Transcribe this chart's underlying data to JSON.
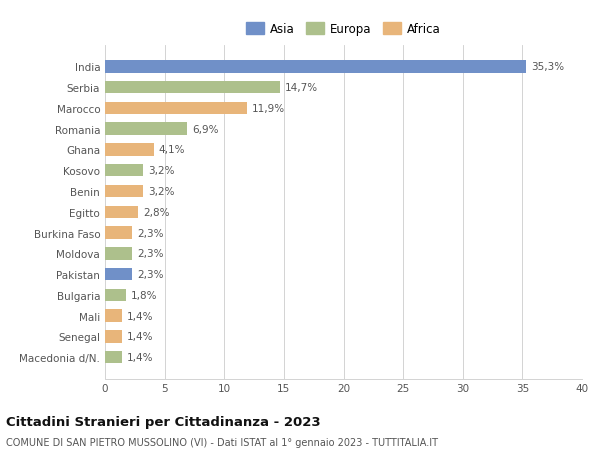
{
  "title": "Cittadini Stranieri per Cittadinanza - 2023",
  "subtitle": "COMUNE DI SAN PIETRO MUSSOLINO (VI) - Dati ISTAT al 1° gennaio 2023 - TUTTITALIA.IT",
  "countries": [
    "India",
    "Serbia",
    "Marocco",
    "Romania",
    "Ghana",
    "Kosovo",
    "Benin",
    "Egitto",
    "Burkina Faso",
    "Moldova",
    "Pakistan",
    "Bulgaria",
    "Mali",
    "Senegal",
    "Macedonia d/N."
  ],
  "values": [
    35.3,
    14.7,
    11.9,
    6.9,
    4.1,
    3.2,
    3.2,
    2.8,
    2.3,
    2.3,
    2.3,
    1.8,
    1.4,
    1.4,
    1.4
  ],
  "labels": [
    "35,3%",
    "14,7%",
    "11,9%",
    "6,9%",
    "4,1%",
    "3,2%",
    "3,2%",
    "2,8%",
    "2,3%",
    "2,3%",
    "2,3%",
    "1,8%",
    "1,4%",
    "1,4%",
    "1,4%"
  ],
  "colors": [
    "#7090c8",
    "#adc08c",
    "#e8b57a",
    "#adc08c",
    "#e8b57a",
    "#adc08c",
    "#e8b57a",
    "#e8b57a",
    "#e8b57a",
    "#adc08c",
    "#7090c8",
    "#adc08c",
    "#e8b57a",
    "#e8b57a",
    "#adc08c"
  ],
  "continent_labels": [
    "Asia",
    "Europa",
    "Africa"
  ],
  "continent_colors": [
    "#7090c8",
    "#adc08c",
    "#e8b57a"
  ],
  "xlim": [
    0,
    40
  ],
  "xticks": [
    0,
    5,
    10,
    15,
    20,
    25,
    30,
    35,
    40
  ],
  "background_color": "#ffffff",
  "grid_color": "#cccccc",
  "bar_height": 0.6,
  "label_fontsize": 7.5,
  "tick_fontsize": 7.5,
  "title_fontsize": 9.5,
  "subtitle_fontsize": 7.0
}
